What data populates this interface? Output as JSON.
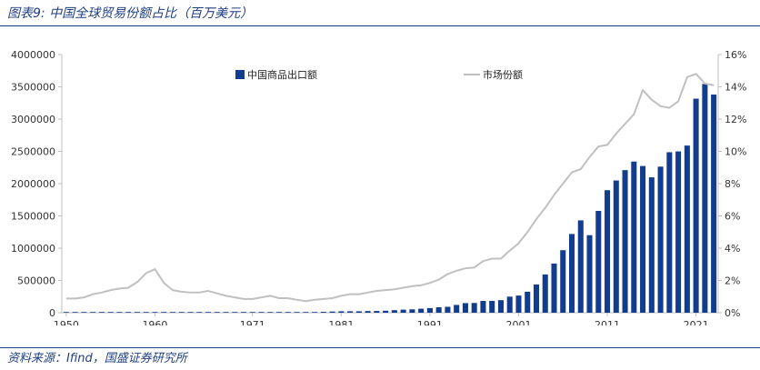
{
  "title": "图表9:  中国全球贸易份额占比（百万美元）",
  "source": "资料来源：Ifind，国盛证券研究所",
  "colors": {
    "bar": "#123d8f",
    "line": "#c0c0c0",
    "accent": "#1f3e82",
    "axis": "#bfbfbf"
  },
  "chart_data": {
    "type": "bar+line",
    "title": "",
    "x": [
      1950,
      1951,
      1952,
      1953,
      1954,
      1955,
      1956,
      1957,
      1958,
      1959,
      1960,
      1961,
      1962,
      1963,
      1964,
      1965,
      1966,
      1967,
      1968,
      1969,
      1970,
      1971,
      1972,
      1973,
      1974,
      1975,
      1976,
      1977,
      1978,
      1979,
      1980,
      1981,
      1982,
      1983,
      1984,
      1985,
      1986,
      1987,
      1988,
      1989,
      1990,
      1991,
      1992,
      1993,
      1994,
      1995,
      1996,
      1997,
      1998,
      1999,
      2000,
      2001,
      2002,
      2003,
      2004,
      2005,
      2006,
      2007,
      2008,
      2009,
      2010,
      2011,
      2012,
      2013,
      2014,
      2015,
      2016,
      2017,
      2018,
      2019,
      2020,
      2021,
      2022,
      2023
    ],
    "x_tick_labels": [
      "1950",
      "1960",
      "1971",
      "1981",
      "1991",
      "2001",
      "2011",
      "2021"
    ],
    "x_tick_positions": [
      1950,
      1960,
      1971,
      1981,
      1991,
      2001,
      2011,
      2021
    ],
    "y_left": {
      "ticks": [
        0,
        500000,
        1000000,
        1500000,
        2000000,
        2500000,
        3000000,
        3500000,
        4000000
      ],
      "tick_labels": [
        "0",
        "500000",
        "1000000",
        "1500000",
        "2000000",
        "2500000",
        "3000000",
        "3500000",
        "4000000"
      ],
      "range": [
        0,
        4000000
      ]
    },
    "y_right": {
      "ticks": [
        0,
        2,
        4,
        6,
        8,
        10,
        12,
        14,
        16
      ],
      "tick_labels": [
        "0%",
        "2%",
        "4%",
        "6%",
        "8%",
        "10%",
        "12%",
        "14%",
        "16%"
      ],
      "range": [
        0,
        16
      ]
    },
    "series": [
      {
        "name": "中国商品出口额",
        "type": "bar",
        "axis": "left",
        "values": [
          550,
          800,
          820,
          1020,
          1150,
          1410,
          1650,
          1600,
          1980,
          2260,
          1860,
          1490,
          1490,
          1650,
          1920,
          2230,
          2370,
          2140,
          2100,
          2200,
          2260,
          2640,
          3440,
          5820,
          6950,
          7260,
          6860,
          7590,
          9750,
          13660,
          18100,
          22000,
          22320,
          22230,
          26140,
          27350,
          30940,
          39440,
          47520,
          52540,
          62090,
          71840,
          84940,
          91740,
          121010,
          148780,
          151050,
          182790,
          183710,
          194930,
          249200,
          266100,
          325600,
          438230,
          593330,
          761950,
          968980,
          1220060,
          1430690,
          1201610,
          1577750,
          1898380,
          2048710,
          2209000,
          2342290,
          2273470,
          2097630,
          2263370,
          2486700,
          2499030,
          2589950,
          3316230,
          3544070,
          3380020
        ]
      },
      {
        "name": "市场份额",
        "type": "line",
        "axis": "right",
        "values": [
          0.88,
          0.88,
          0.95,
          1.15,
          1.25,
          1.4,
          1.5,
          1.55,
          1.9,
          2.45,
          2.7,
          1.85,
          1.4,
          1.3,
          1.25,
          1.25,
          1.35,
          1.2,
          1.05,
          0.95,
          0.85,
          0.85,
          0.95,
          1.05,
          0.9,
          0.9,
          0.8,
          0.72,
          0.8,
          0.85,
          0.9,
          1.05,
          1.15,
          1.15,
          1.25,
          1.35,
          1.4,
          1.45,
          1.55,
          1.65,
          1.7,
          1.85,
          2.05,
          2.4,
          2.6,
          2.75,
          2.8,
          3.2,
          3.35,
          3.35,
          3.85,
          4.3,
          5.0,
          5.8,
          6.5,
          7.3,
          8.0,
          8.7,
          8.9,
          9.65,
          10.3,
          10.4,
          11.1,
          11.7,
          12.3,
          13.8,
          13.2,
          12.8,
          12.7,
          13.1,
          14.6,
          14.8,
          14.2,
          14.1
        ]
      }
    ],
    "legend": [
      {
        "label": "中国商品出口额",
        "marker": "bar"
      },
      {
        "label": "市场份额",
        "marker": "line"
      }
    ],
    "legend_placement": "top",
    "grid": false
  }
}
